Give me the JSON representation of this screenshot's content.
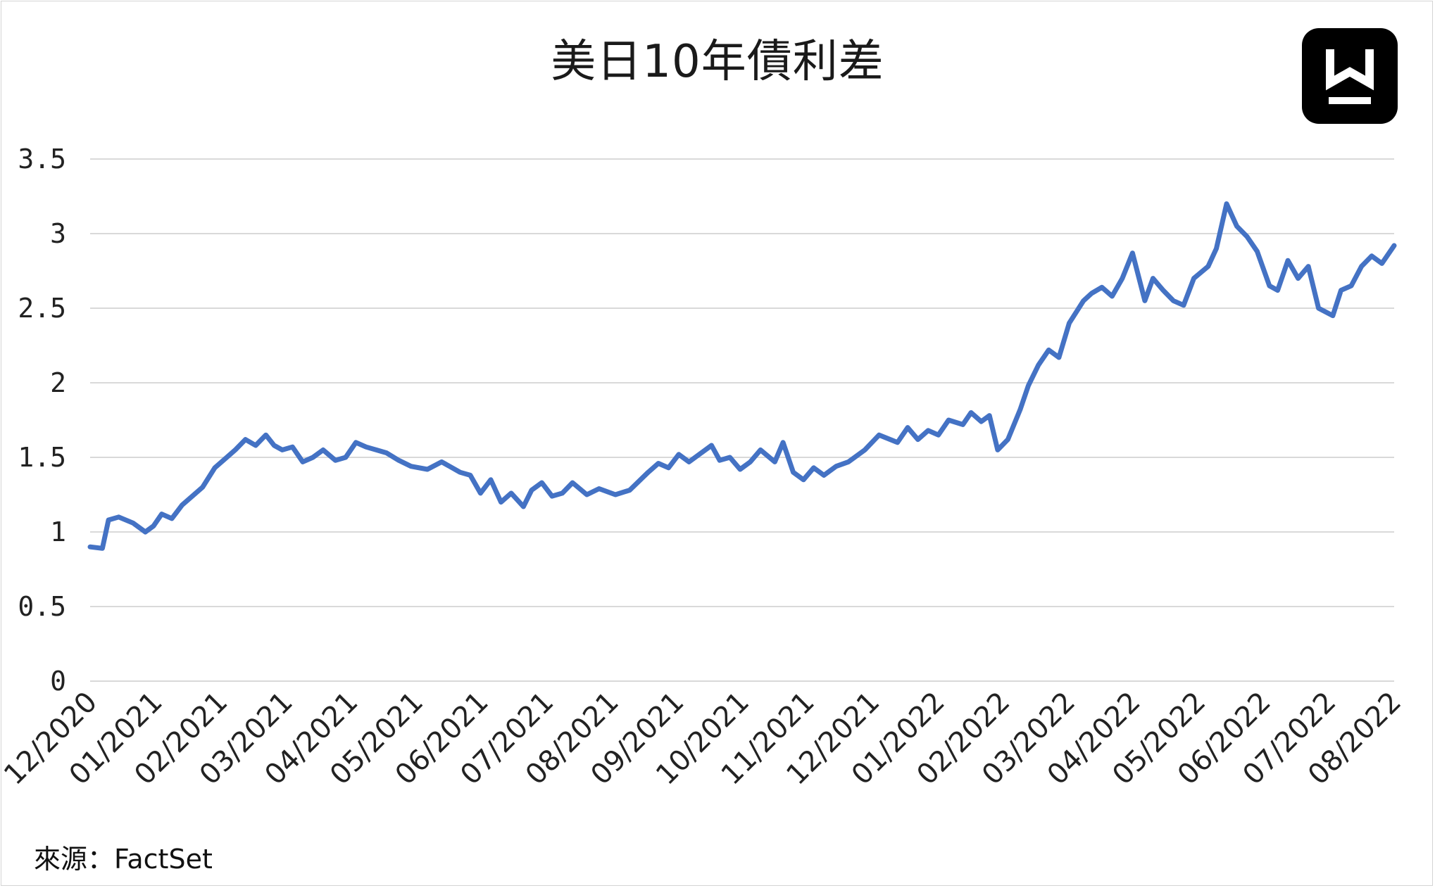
{
  "chart_data": {
    "type": "line",
    "title": "美日10年債利差",
    "source": "來源：FactSet",
    "ylim": [
      0,
      3.5
    ],
    "yticks": [
      "0",
      "0.5",
      "1",
      "1.5",
      "2",
      "2.5",
      "3",
      "3.5"
    ],
    "x_ticks": [
      "12/2020",
      "01/2021",
      "02/2021",
      "03/2021",
      "04/2021",
      "05/2021",
      "06/2021",
      "07/2021",
      "08/2021",
      "09/2021",
      "10/2021",
      "11/2021",
      "12/2021",
      "01/2022",
      "02/2022",
      "03/2022",
      "04/2022",
      "05/2022",
      "06/2022",
      "07/2022",
      "08/2022"
    ],
    "grid": true,
    "line_color": "#4472c4",
    "series": [
      {
        "x": [
          "2020-12-01",
          "2020-12-07",
          "2020-12-10",
          "2020-12-15",
          "2020-12-22",
          "2020-12-28",
          "2021-01-01",
          "2021-01-05",
          "2021-01-10",
          "2021-01-15",
          "2021-01-20",
          "2021-01-25",
          "2021-01-31",
          "2021-02-05",
          "2021-02-10",
          "2021-02-15",
          "2021-02-20",
          "2021-02-25",
          "2021-03-01",
          "2021-03-05",
          "2021-03-10",
          "2021-03-15",
          "2021-03-20",
          "2021-03-25",
          "2021-03-31",
          "2021-04-05",
          "2021-04-10",
          "2021-04-15",
          "2021-04-20",
          "2021-04-25",
          "2021-05-01",
          "2021-05-07",
          "2021-05-15",
          "2021-05-22",
          "2021-05-31",
          "2021-06-05",
          "2021-06-10",
          "2021-06-15",
          "2021-06-20",
          "2021-06-25",
          "2021-07-01",
          "2021-07-05",
          "2021-07-10",
          "2021-07-15",
          "2021-07-20",
          "2021-07-25",
          "2021-08-01",
          "2021-08-07",
          "2021-08-15",
          "2021-08-22",
          "2021-08-31",
          "2021-09-05",
          "2021-09-10",
          "2021-09-15",
          "2021-09-20",
          "2021-09-25",
          "2021-10-01",
          "2021-10-05",
          "2021-10-10",
          "2021-10-15",
          "2021-10-20",
          "2021-10-25",
          "2021-11-01",
          "2021-11-05",
          "2021-11-10",
          "2021-11-15",
          "2021-11-20",
          "2021-11-25",
          "2021-12-01",
          "2021-12-07",
          "2021-12-15",
          "2021-12-22",
          "2021-12-31",
          "2022-01-05",
          "2022-01-10",
          "2022-01-15",
          "2022-01-20",
          "2022-01-25",
          "2022-02-01",
          "2022-02-05",
          "2022-02-10",
          "2022-02-14",
          "2022-02-18",
          "2022-02-23",
          "2022-03-01",
          "2022-03-05",
          "2022-03-10",
          "2022-03-15",
          "2022-03-20",
          "2022-03-25",
          "2022-04-01",
          "2022-04-05",
          "2022-04-10",
          "2022-04-15",
          "2022-04-20",
          "2022-04-25",
          "2022-05-01",
          "2022-05-05",
          "2022-05-10",
          "2022-05-15",
          "2022-05-20",
          "2022-05-25",
          "2022-06-01",
          "2022-06-05",
          "2022-06-10",
          "2022-06-15",
          "2022-06-20",
          "2022-06-25",
          "2022-07-01",
          "2022-07-05",
          "2022-07-10",
          "2022-07-15",
          "2022-07-20",
          "2022-07-25",
          "2022-08-01",
          "2022-08-05",
          "2022-08-10",
          "2022-08-15",
          "2022-08-20",
          "2022-08-25",
          "2022-08-31"
        ],
        "values": [
          0.9,
          0.89,
          1.08,
          1.1,
          1.06,
          1.0,
          1.04,
          1.12,
          1.09,
          1.18,
          1.24,
          1.3,
          1.43,
          1.49,
          1.55,
          1.62,
          1.58,
          1.65,
          1.58,
          1.55,
          1.57,
          1.47,
          1.5,
          1.55,
          1.48,
          1.5,
          1.6,
          1.57,
          1.55,
          1.53,
          1.48,
          1.44,
          1.42,
          1.47,
          1.4,
          1.38,
          1.26,
          1.35,
          1.2,
          1.26,
          1.17,
          1.28,
          1.33,
          1.24,
          1.26,
          1.33,
          1.25,
          1.29,
          1.25,
          1.28,
          1.4,
          1.46,
          1.43,
          1.52,
          1.47,
          1.52,
          1.58,
          1.48,
          1.5,
          1.42,
          1.47,
          1.55,
          1.47,
          1.6,
          1.4,
          1.35,
          1.43,
          1.38,
          1.44,
          1.47,
          1.55,
          1.65,
          1.6,
          1.7,
          1.62,
          1.68,
          1.65,
          1.75,
          1.72,
          1.8,
          1.74,
          1.78,
          1.55,
          1.62,
          1.82,
          1.98,
          2.12,
          2.22,
          2.17,
          2.4,
          2.55,
          2.6,
          2.64,
          2.58,
          2.7,
          2.87,
          2.55,
          2.7,
          2.62,
          2.55,
          2.52,
          2.7,
          2.78,
          2.9,
          3.2,
          3.05,
          2.98,
          2.88,
          2.65,
          2.62,
          2.82,
          2.7,
          2.78,
          2.5,
          2.45,
          2.62,
          2.65,
          2.78,
          2.85,
          2.8,
          2.92
        ]
      }
    ]
  },
  "logo": {
    "name": "brand-logo"
  }
}
